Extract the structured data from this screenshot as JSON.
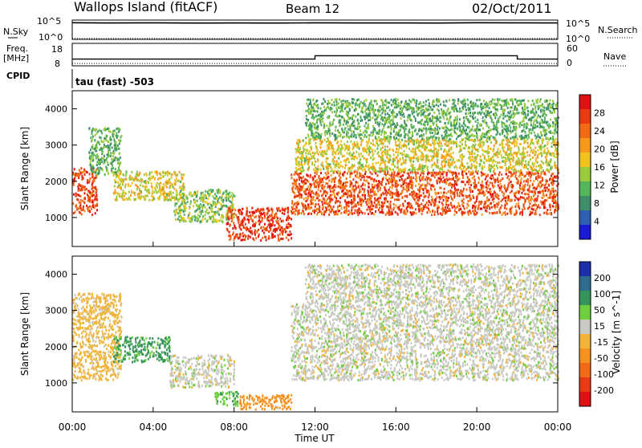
{
  "header": {
    "station": "Wallops Island (fitACF)",
    "beam": "Beam 12",
    "date": "02/Oct/2011"
  },
  "labels": {
    "nsky": "N.Sky",
    "nsearch": "N.Search",
    "freq_line1": "Freq.",
    "freq_line2": "[MHz]",
    "nave": "Nave",
    "cpid": "CPID",
    "cpid_value": "tau (fast) -503",
    "xlabel": "Time UT"
  },
  "noise_axis": {
    "left_ticks": [
      "10^5",
      "10^0"
    ],
    "right_ticks": [
      "10^5",
      "10^0"
    ]
  },
  "freq_axis": {
    "left_ticks": [
      "18",
      "8"
    ],
    "right_ticks": [
      "60",
      "0"
    ]
  },
  "colors": {
    "trace": "#000000",
    "power_scale": [
      "#1a1ad6",
      "#2f5fb0",
      "#3e8f6a",
      "#55b55a",
      "#9acb3c",
      "#f2c21f",
      "#f79a1c",
      "#f26a16",
      "#ea3a12",
      "#e01010"
    ],
    "velocity_scale": [
      "#1b2fa8",
      "#2f6a8f",
      "#34945a",
      "#6fcf3f",
      "#c9c9c3",
      "#f0b43a",
      "#f5911f",
      "#f06a18",
      "#e83a14",
      "#e01010"
    ]
  },
  "chart_data": [
    {
      "type": "line",
      "panel": "noise",
      "x": [
        "00:00",
        "02:00",
        "04:00",
        "06:00",
        "08:00",
        "10:00",
        "12:00",
        "14:00",
        "16:00",
        "18:00",
        "20:00",
        "22:00",
        "24:00"
      ],
      "series": [
        {
          "name": "N.Sky",
          "values": [
            20000,
            18000,
            19000,
            17000,
            18000,
            17000,
            19000,
            18000,
            18000,
            17000,
            20000,
            19000,
            18000
          ]
        },
        {
          "name": "N.Search",
          "values": [
            1,
            1,
            1,
            1,
            1,
            1,
            1,
            1,
            1,
            1,
            1,
            1,
            1
          ]
        }
      ],
      "ylim": [
        1,
        100000
      ],
      "yscale": "log"
    },
    {
      "type": "line",
      "panel": "frequency",
      "x": [
        "00:00",
        "02:00",
        "04:00",
        "06:00",
        "08:00",
        "10:00",
        "12:00",
        "14:00",
        "16:00",
        "18:00",
        "20:00",
        "22:00",
        "24:00"
      ],
      "series": [
        {
          "name": "Freq.",
          "values": [
            11,
            11,
            11,
            11,
            11,
            11,
            12.5,
            12.5,
            12.5,
            12.5,
            12.5,
            11,
            11
          ]
        },
        {
          "name": "Nave",
          "values": [
            1,
            1,
            1,
            1,
            1,
            1,
            1,
            1,
            1,
            1,
            1,
            1,
            1
          ]
        }
      ],
      "ylim": [
        8,
        18
      ]
    },
    {
      "type": "heatmap",
      "panel": "power",
      "ylabel": "Slant Range [km]",
      "xlabel": "Time UT",
      "x_ticks": [
        "00:00",
        "04:00",
        "08:00",
        "12:00",
        "16:00",
        "20:00",
        "00:00"
      ],
      "y_ticks": [
        1000,
        2000,
        3000,
        4000
      ],
      "xlim": [
        0,
        24
      ],
      "ylim": [
        200,
        4500
      ],
      "colorbar": {
        "label": "Power [dB]",
        "ticks": [
          4,
          8,
          12,
          16,
          20,
          24,
          28
        ],
        "range": [
          0,
          30
        ]
      },
      "echo_regions": [
        {
          "t": [
            0.0,
            1.2
          ],
          "range": [
            1100,
            2400
          ],
          "power": 26
        },
        {
          "t": [
            0.8,
            2.4
          ],
          "range": [
            2200,
            3500
          ],
          "power": 10
        },
        {
          "t": [
            2.0,
            5.5
          ],
          "range": [
            1500,
            2300
          ],
          "power": 16
        },
        {
          "t": [
            5.0,
            8.0
          ],
          "range": [
            900,
            1800
          ],
          "power": 12
        },
        {
          "t": [
            7.6,
            10.8
          ],
          "range": [
            400,
            1300
          ],
          "power": 27
        },
        {
          "t": [
            10.8,
            24.0
          ],
          "range": [
            1100,
            2300
          ],
          "power": 25
        },
        {
          "t": [
            11.0,
            24.0
          ],
          "range": [
            2300,
            3200
          ],
          "power": 16
        },
        {
          "t": [
            11.5,
            24.0
          ],
          "range": [
            3200,
            4300
          ],
          "power": 10
        }
      ]
    },
    {
      "type": "heatmap",
      "panel": "velocity",
      "ylabel": "Slant Range [km]",
      "xlabel": "Time UT",
      "x_ticks": [
        "00:00",
        "04:00",
        "08:00",
        "12:00",
        "16:00",
        "20:00",
        "00:00"
      ],
      "y_ticks": [
        1000,
        2000,
        3000,
        4000
      ],
      "xlim": [
        0,
        24
      ],
      "ylim": [
        200,
        4500
      ],
      "colorbar": {
        "label": "Velocity [m s^-1]",
        "ticks": [
          200,
          100,
          50,
          15,
          -15,
          -50,
          -100,
          -200
        ]
      },
      "echo_regions": [
        {
          "t": [
            0.0,
            2.4
          ],
          "range": [
            1100,
            3500
          ],
          "velocity": -30
        },
        {
          "t": [
            2.0,
            4.8
          ],
          "range": [
            1600,
            2300
          ],
          "velocity": 60
        },
        {
          "t": [
            4.8,
            8.0
          ],
          "range": [
            900,
            1800
          ],
          "velocity": 0
        },
        {
          "t": [
            7.0,
            8.2
          ],
          "range": [
            400,
            800
          ],
          "velocity": 40
        },
        {
          "t": [
            8.2,
            10.8
          ],
          "range": [
            300,
            700
          ],
          "velocity": -80
        },
        {
          "t": [
            10.8,
            24.0
          ],
          "range": [
            1100,
            3200
          ],
          "velocity": 0
        },
        {
          "t": [
            11.5,
            24.0
          ],
          "range": [
            3200,
            4300
          ],
          "velocity": 0
        }
      ]
    }
  ]
}
